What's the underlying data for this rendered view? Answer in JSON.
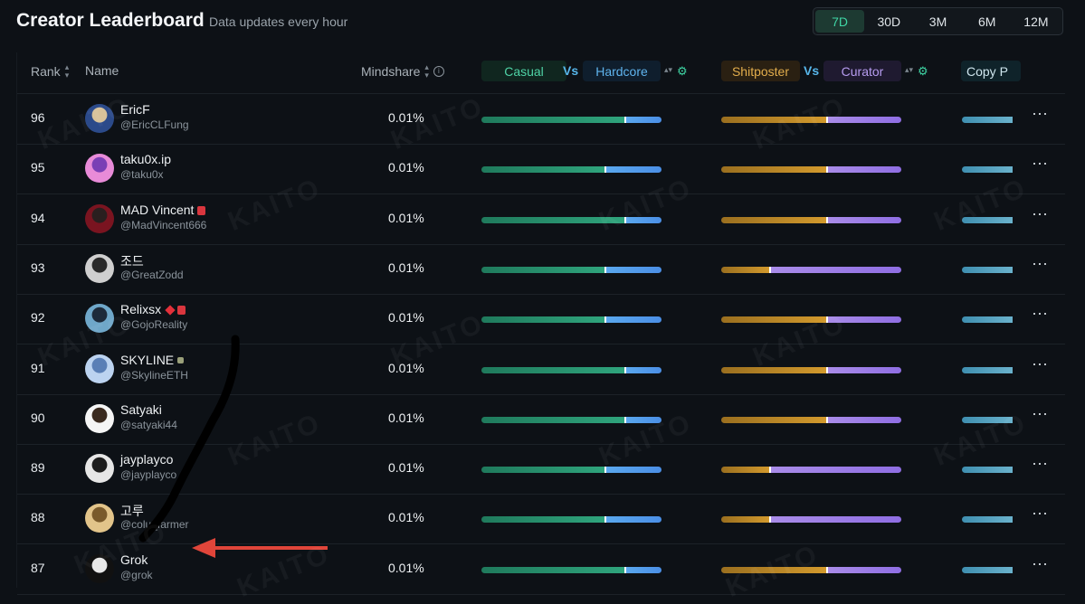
{
  "header": {
    "title": "Creator Leaderboard",
    "subtitle": "Data updates every hour",
    "periods": [
      "7D",
      "30D",
      "3M",
      "6M",
      "12M"
    ],
    "active_period": "7D"
  },
  "columns": {
    "rank": "Rank",
    "name": "Name",
    "mindshare": "Mindshare",
    "casual": "Casual",
    "vs": "Vs",
    "hardcore": "Hardcore",
    "shitposter": "Shitposter",
    "curator": "Curator",
    "copy": "Copy P"
  },
  "colors": {
    "accent": "#3fd6a5",
    "casual": "#2fa57d",
    "hardcore": "#4b8fe6",
    "shitposter": "#d39a2d",
    "curator": "#8f6ee3",
    "annotation_arrow": "#e0453a"
  },
  "watermark": "KAITO",
  "rows": [
    {
      "rank": "96",
      "name": "EricF",
      "handle": "@EricCLFung",
      "mindshare": "0.01%",
      "casual_split": 0.8,
      "shit_split": 0.59,
      "avatar_colors": [
        "#2b4a8a",
        "#d8c29a"
      ],
      "badges": []
    },
    {
      "rank": "95",
      "name": "taku0x.ip",
      "handle": "@taku0x",
      "mindshare": "0.01%",
      "casual_split": 0.69,
      "shit_split": 0.59,
      "avatar_colors": [
        "#e88bd8",
        "#7a3fb5"
      ],
      "badges": []
    },
    {
      "rank": "94",
      "name": "MAD Vincent",
      "handle": "@MadVincent666",
      "mindshare": "0.01%",
      "casual_split": 0.8,
      "shit_split": 0.59,
      "avatar_colors": [
        "#7a1420",
        "#2a1f1f"
      ],
      "badges": [
        "red-badge"
      ]
    },
    {
      "rank": "93",
      "name": "조드",
      "handle": "@GreatZodd",
      "mindshare": "0.01%",
      "casual_split": 0.69,
      "shit_split": 0.27,
      "avatar_colors": [
        "#cfcfcf",
        "#2a2a2a"
      ],
      "badges": []
    },
    {
      "rank": "92",
      "name": "Relixsx",
      "handle": "@GojoReality",
      "mindshare": "0.01%",
      "casual_split": 0.69,
      "shit_split": 0.59,
      "avatar_colors": [
        "#6fa7c9",
        "#1d2a3a"
      ],
      "badges": [
        "diamond",
        "red-badge"
      ]
    },
    {
      "rank": "91",
      "name": "SKYLINE",
      "handle": "@SkylineETH",
      "mindshare": "0.01%",
      "casual_split": 0.8,
      "shit_split": 0.59,
      "avatar_colors": [
        "#bcd3f0",
        "#5a7fb6"
      ],
      "badges": [
        "small-icon"
      ]
    },
    {
      "rank": "90",
      "name": "Satyaki",
      "handle": "@satyaki44",
      "mindshare": "0.01%",
      "casual_split": 0.8,
      "shit_split": 0.59,
      "avatar_colors": [
        "#f5f5f5",
        "#3a2a1f"
      ],
      "badges": []
    },
    {
      "rank": "89",
      "name": "jayplayco",
      "handle": "@jayplayco",
      "mindshare": "0.01%",
      "casual_split": 0.69,
      "shit_split": 0.27,
      "avatar_colors": [
        "#e6e6e6",
        "#1d1d1d"
      ],
      "badges": []
    },
    {
      "rank": "88",
      "name": "고루",
      "handle": "@colu_farmer",
      "mindshare": "0.01%",
      "casual_split": 0.69,
      "shit_split": 0.27,
      "avatar_colors": [
        "#e2c48a",
        "#7a5a2b"
      ],
      "badges": []
    },
    {
      "rank": "87",
      "name": "Grok",
      "handle": "@grok",
      "mindshare": "0.01%",
      "casual_split": 0.8,
      "shit_split": 0.59,
      "avatar_colors": [
        "#111111",
        "#e8e8e8"
      ],
      "badges": []
    }
  ]
}
